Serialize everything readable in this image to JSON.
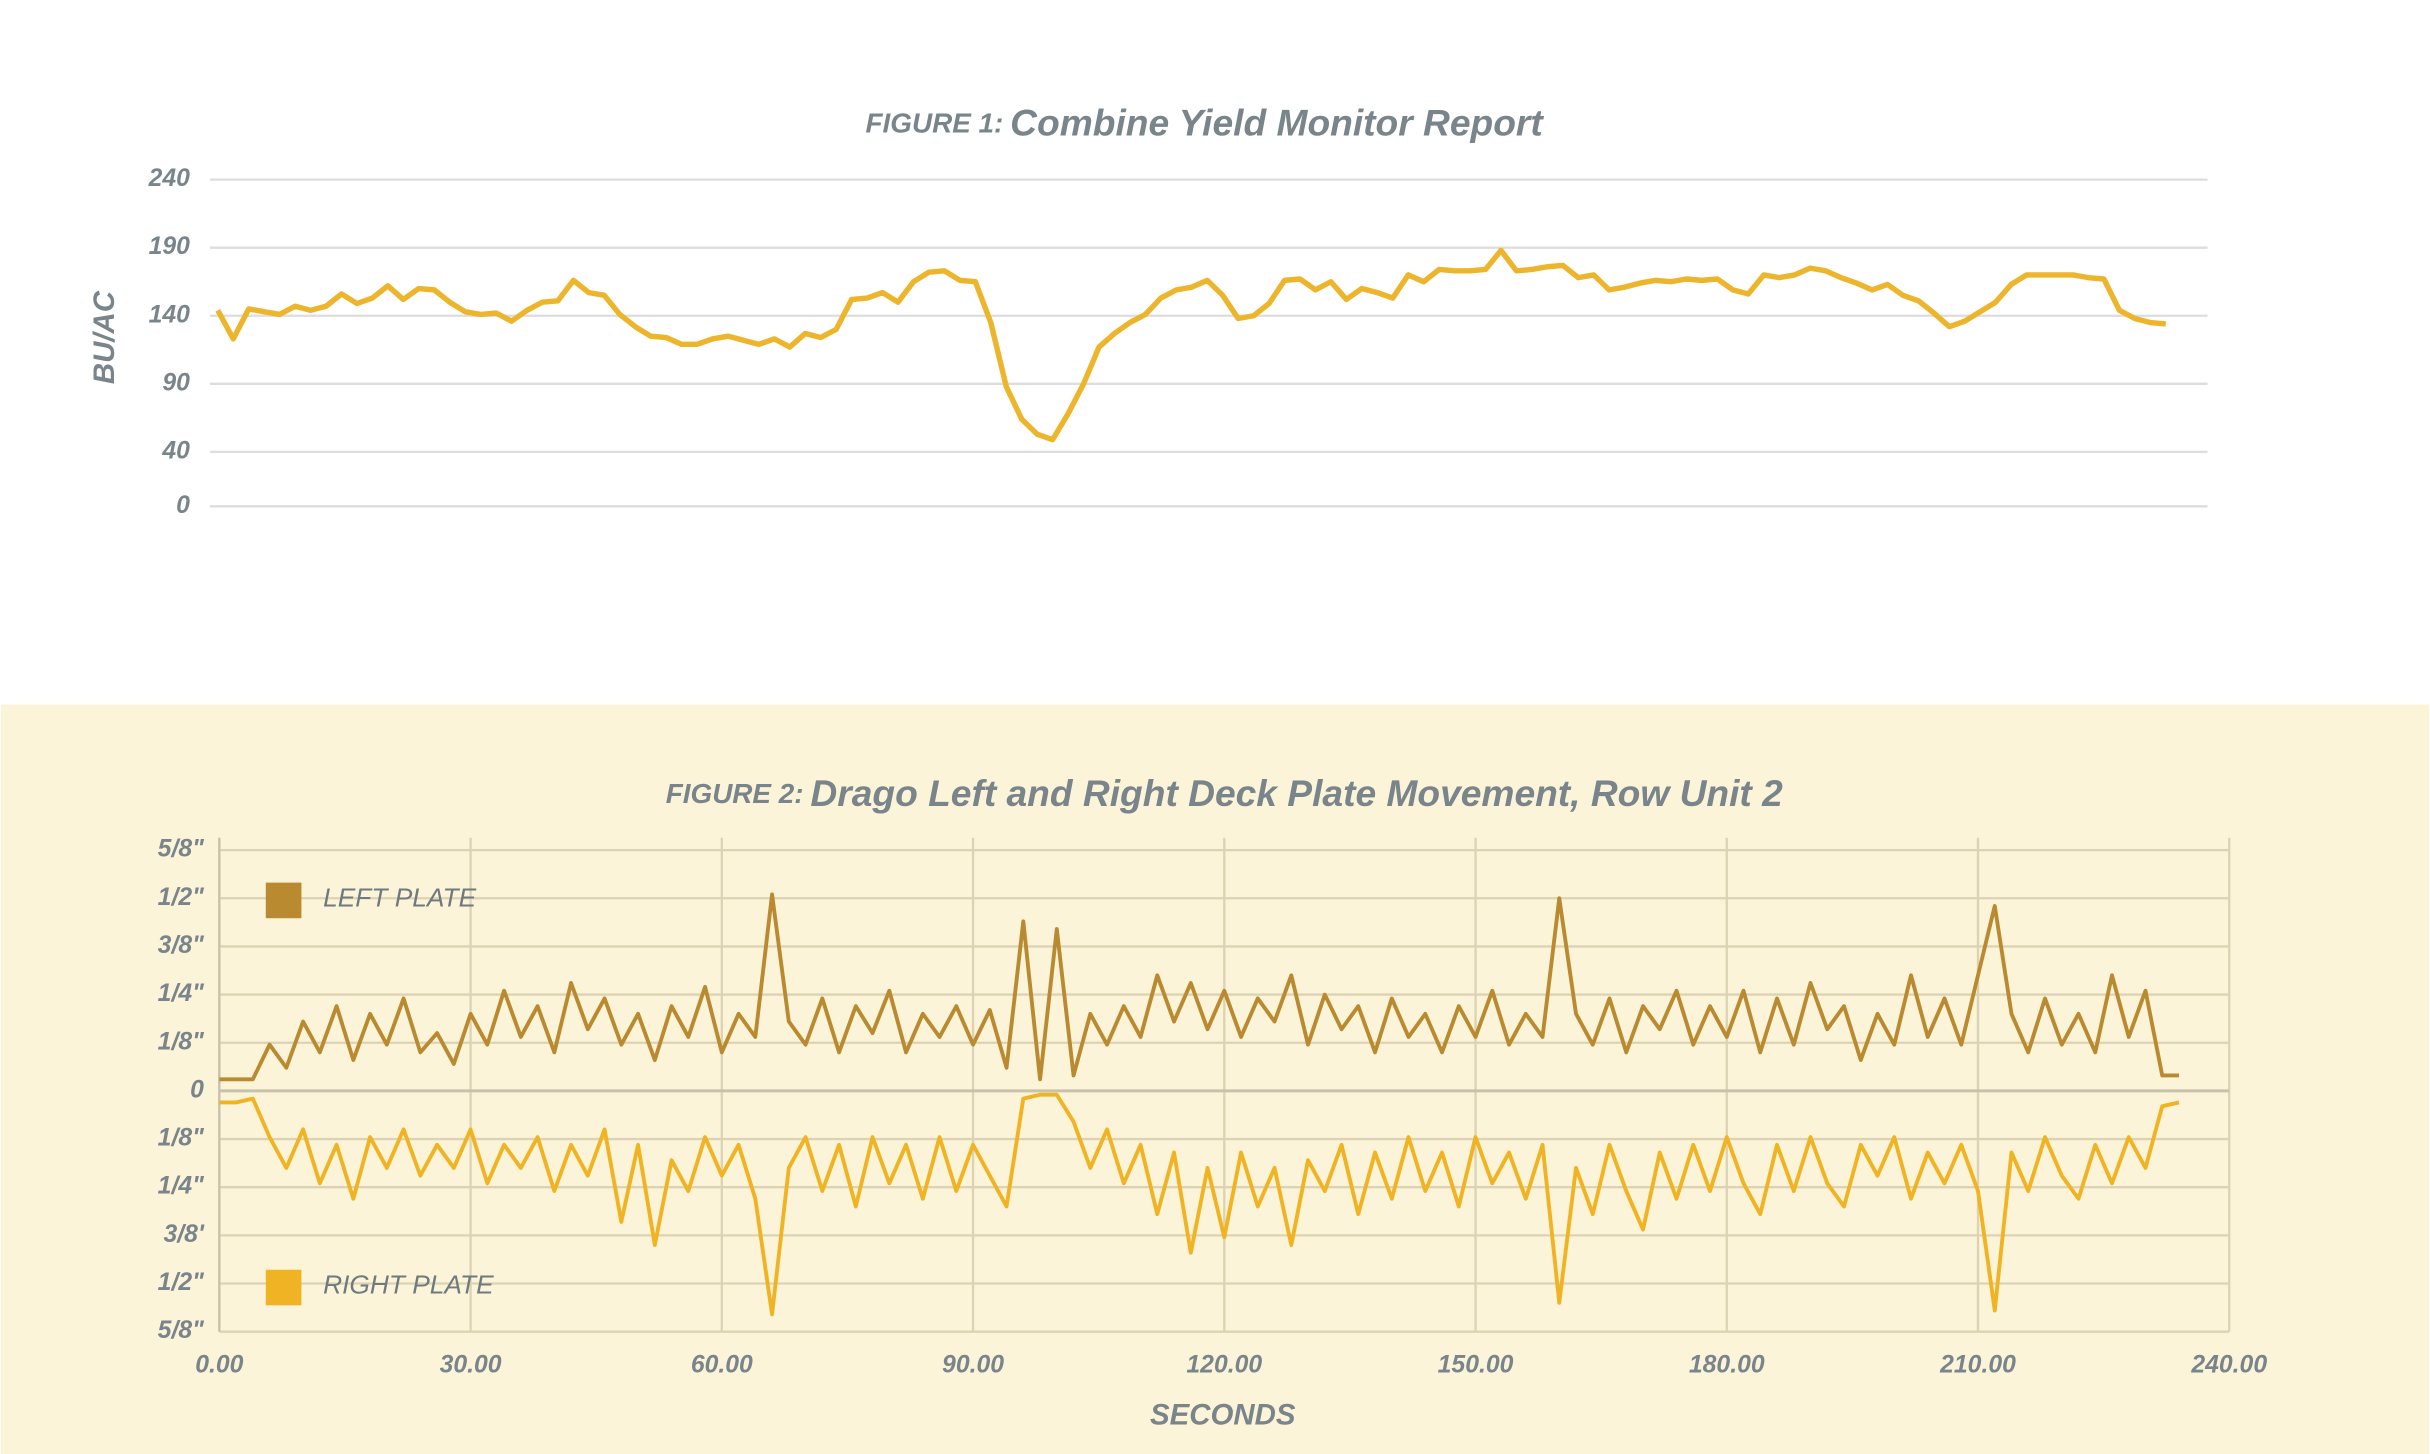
{
  "chart_data": [
    {
      "type": "line",
      "figure_label": "FIGURE 1:",
      "title": "Combine Yield Monitor Report",
      "ylabel": "BU/AC",
      "color": "#ecb52b",
      "ylim": [
        0,
        240
      ],
      "yticks": [
        0,
        40,
        90,
        140,
        190,
        240
      ],
      "grid": true,
      "values": [
        144,
        123,
        145,
        143,
        141,
        147,
        144,
        147,
        156,
        149,
        153,
        162,
        152,
        160,
        159,
        150,
        143,
        141,
        142,
        136,
        144,
        150,
        151,
        166,
        157,
        155,
        141,
        132,
        125,
        124,
        119,
        119,
        123,
        125,
        122,
        119,
        123,
        117,
        127,
        124,
        130,
        152,
        153,
        157,
        150,
        165,
        172,
        173,
        166,
        165,
        135,
        88,
        64,
        53,
        49,
        68,
        90,
        117,
        127,
        135,
        141,
        153,
        159,
        161,
        166,
        155,
        138,
        140,
        149,
        166,
        167,
        159,
        165,
        152,
        160,
        157,
        153,
        170,
        165,
        174,
        173,
        173,
        174,
        188,
        173,
        174,
        176,
        177,
        168,
        170,
        159,
        161,
        164,
        166,
        165,
        167,
        166,
        167,
        159,
        156,
        170,
        168,
        170,
        175,
        173,
        168,
        164,
        159,
        163,
        155,
        151,
        142,
        132,
        136,
        143,
        150,
        163,
        170,
        170,
        170,
        170,
        168,
        167,
        144,
        138,
        135,
        134
      ]
    },
    {
      "type": "line",
      "figure_label": "FIGURE 2:",
      "title": "Drago Left and Right Deck Plate Movement, Row Unit 2",
      "xlabel": "SECONDS",
      "xlim": [
        0,
        240
      ],
      "xticks": [
        {
          "value": 0,
          "label": "0.00"
        },
        {
          "value": 30,
          "label": "30.00"
        },
        {
          "value": 60,
          "label": "60.00"
        },
        {
          "value": 90,
          "label": "90.00"
        },
        {
          "value": 120,
          "label": "120.00"
        },
        {
          "value": 150,
          "label": "150.00"
        },
        {
          "value": 180,
          "label": "180.00"
        },
        {
          "value": 210,
          "label": "210.00"
        },
        {
          "value": 240,
          "label": "240.00"
        }
      ],
      "ylim": [
        -0.625,
        0.625
      ],
      "yticks": [
        {
          "value": 0.625,
          "label": "5/8\""
        },
        {
          "value": 0.5,
          "label": "1/2\""
        },
        {
          "value": 0.375,
          "label": "3/8\""
        },
        {
          "value": 0.25,
          "label": "1/4\""
        },
        {
          "value": 0.125,
          "label": "1/8\""
        },
        0,
        {
          "value": -0.125,
          "label": "1/8\""
        },
        {
          "value": -0.25,
          "label": "1/4\""
        },
        {
          "value": -0.375,
          "label": "3/8'"
        },
        {
          "value": -0.5,
          "label": "1/2\""
        },
        {
          "value": -0.625,
          "label": "5/8\""
        }
      ],
      "grid": true,
      "x": [
        0,
        2,
        4,
        6,
        8,
        10,
        12,
        14,
        16,
        18,
        20,
        22,
        24,
        26,
        28,
        30,
        32,
        34,
        36,
        38,
        40,
        42,
        44,
        46,
        48,
        50,
        52,
        54,
        56,
        58,
        60,
        62,
        64,
        66,
        68,
        70,
        72,
        74,
        76,
        78,
        80,
        82,
        84,
        86,
        88,
        90,
        92,
        94,
        96,
        98,
        100,
        102,
        104,
        106,
        108,
        110,
        112,
        114,
        116,
        118,
        120,
        122,
        124,
        126,
        128,
        130,
        132,
        134,
        136,
        138,
        140,
        142,
        144,
        146,
        148,
        150,
        152,
        154,
        156,
        158,
        160,
        162,
        164,
        166,
        168,
        170,
        172,
        174,
        176,
        178,
        180,
        182,
        184,
        186,
        188,
        190,
        192,
        194,
        196,
        198,
        200,
        202,
        204,
        206,
        208,
        210,
        212,
        214,
        216,
        218,
        220,
        222,
        224,
        226,
        228,
        230,
        232,
        234
      ],
      "series": [
        {
          "name": "LEFT PLATE",
          "color": "#b98a2f",
          "values": [
            0.03,
            0.03,
            0.03,
            0.12,
            0.06,
            0.18,
            0.1,
            0.22,
            0.08,
            0.2,
            0.12,
            0.24,
            0.1,
            0.15,
            0.07,
            0.2,
            0.12,
            0.26,
            0.14,
            0.22,
            0.1,
            0.28,
            0.16,
            0.24,
            0.12,
            0.2,
            0.08,
            0.22,
            0.14,
            0.27,
            0.1,
            0.2,
            0.14,
            0.51,
            0.18,
            0.12,
            0.24,
            0.1,
            0.22,
            0.15,
            0.26,
            0.1,
            0.2,
            0.14,
            0.22,
            0.12,
            0.21,
            0.06,
            0.44,
            0.03,
            0.42,
            0.04,
            0.2,
            0.12,
            0.22,
            0.14,
            0.3,
            0.18,
            0.28,
            0.16,
            0.26,
            0.14,
            0.24,
            0.18,
            0.3,
            0.12,
            0.25,
            0.16,
            0.22,
            0.1,
            0.24,
            0.14,
            0.2,
            0.1,
            0.22,
            0.14,
            0.26,
            0.12,
            0.2,
            0.14,
            0.5,
            0.2,
            0.12,
            0.24,
            0.1,
            0.22,
            0.16,
            0.26,
            0.12,
            0.22,
            0.14,
            0.26,
            0.1,
            0.24,
            0.12,
            0.28,
            0.16,
            0.22,
            0.08,
            0.2,
            0.12,
            0.3,
            0.14,
            0.24,
            0.12,
            0.3,
            0.48,
            0.2,
            0.1,
            0.24,
            0.12,
            0.2,
            0.1,
            0.3,
            0.14,
            0.26,
            0.04,
            0.04
          ]
        },
        {
          "name": "RIGHT PLATE",
          "color": "#f0b323",
          "values": [
            -0.03,
            -0.03,
            -0.02,
            -0.12,
            -0.2,
            -0.1,
            -0.24,
            -0.14,
            -0.28,
            -0.12,
            -0.2,
            -0.1,
            -0.22,
            -0.14,
            -0.2,
            -0.1,
            -0.24,
            -0.14,
            -0.2,
            -0.12,
            -0.26,
            -0.14,
            -0.22,
            -0.1,
            -0.34,
            -0.14,
            -0.4,
            -0.18,
            -0.26,
            -0.12,
            -0.22,
            -0.14,
            -0.28,
            -0.58,
            -0.2,
            -0.12,
            -0.26,
            -0.14,
            -0.3,
            -0.12,
            -0.24,
            -0.14,
            -0.28,
            -0.12,
            -0.26,
            -0.14,
            -0.22,
            -0.3,
            -0.02,
            -0.01,
            -0.01,
            -0.08,
            -0.2,
            -0.1,
            -0.24,
            -0.14,
            -0.32,
            -0.16,
            -0.42,
            -0.2,
            -0.38,
            -0.16,
            -0.3,
            -0.2,
            -0.4,
            -0.18,
            -0.26,
            -0.14,
            -0.32,
            -0.16,
            -0.28,
            -0.12,
            -0.26,
            -0.16,
            -0.3,
            -0.12,
            -0.24,
            -0.16,
            -0.28,
            -0.14,
            -0.55,
            -0.2,
            -0.32,
            -0.14,
            -0.26,
            -0.36,
            -0.16,
            -0.28,
            -0.14,
            -0.26,
            -0.12,
            -0.24,
            -0.32,
            -0.14,
            -0.26,
            -0.12,
            -0.24,
            -0.3,
            -0.14,
            -0.22,
            -0.12,
            -0.28,
            -0.16,
            -0.24,
            -0.14,
            -0.26,
            -0.57,
            -0.16,
            -0.26,
            -0.12,
            -0.22,
            -0.28,
            -0.14,
            -0.24,
            -0.12,
            -0.2,
            -0.04,
            -0.03
          ]
        }
      ]
    }
  ]
}
